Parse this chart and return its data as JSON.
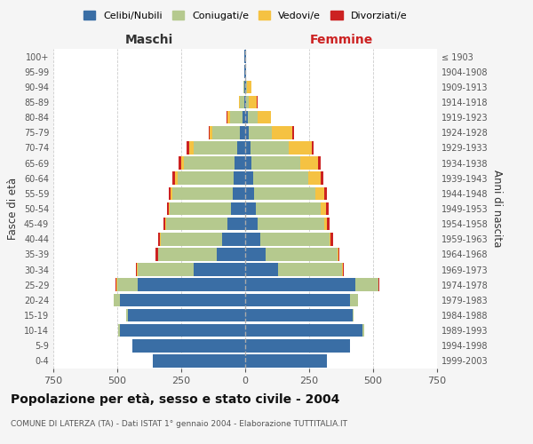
{
  "age_groups": [
    "0-4",
    "5-9",
    "10-14",
    "15-19",
    "20-24",
    "25-29",
    "30-34",
    "35-39",
    "40-44",
    "45-49",
    "50-54",
    "55-59",
    "60-64",
    "65-69",
    "70-74",
    "75-79",
    "80-84",
    "85-89",
    "90-94",
    "95-99",
    "100+"
  ],
  "birth_years": [
    "1999-2003",
    "1994-1998",
    "1989-1993",
    "1984-1988",
    "1979-1983",
    "1974-1978",
    "1969-1973",
    "1964-1968",
    "1959-1963",
    "1954-1958",
    "1949-1953",
    "1944-1948",
    "1939-1943",
    "1934-1938",
    "1929-1933",
    "1924-1928",
    "1919-1923",
    "1914-1918",
    "1909-1913",
    "1904-1908",
    "≤ 1903"
  ],
  "male": {
    "celibi": [
      360,
      440,
      490,
      460,
      490,
      420,
      200,
      110,
      90,
      70,
      55,
      50,
      45,
      40,
      30,
      20,
      10,
      5,
      3,
      2,
      2
    ],
    "coniugati": [
      0,
      0,
      5,
      5,
      25,
      80,
      220,
      230,
      240,
      240,
      240,
      235,
      220,
      200,
      170,
      110,
      50,
      15,
      5,
      0,
      0
    ],
    "vedovi": [
      0,
      0,
      0,
      0,
      0,
      2,
      2,
      2,
      2,
      2,
      3,
      5,
      8,
      10,
      20,
      10,
      10,
      5,
      0,
      0,
      0
    ],
    "divorziati": [
      0,
      0,
      0,
      0,
      0,
      5,
      5,
      8,
      8,
      8,
      8,
      10,
      12,
      10,
      8,
      2,
      2,
      0,
      0,
      0,
      0
    ]
  },
  "female": {
    "nubili": [
      320,
      410,
      460,
      420,
      410,
      430,
      130,
      80,
      60,
      50,
      40,
      35,
      30,
      25,
      20,
      15,
      10,
      5,
      3,
      2,
      2
    ],
    "coniugate": [
      0,
      0,
      5,
      5,
      30,
      90,
      250,
      280,
      270,
      260,
      255,
      240,
      215,
      190,
      150,
      90,
      40,
      10,
      5,
      0,
      0
    ],
    "vedove": [
      0,
      0,
      0,
      0,
      0,
      2,
      3,
      3,
      5,
      10,
      20,
      35,
      50,
      70,
      90,
      80,
      50,
      30,
      15,
      2,
      0
    ],
    "divorziate": [
      0,
      0,
      0,
      0,
      0,
      2,
      3,
      5,
      8,
      10,
      10,
      10,
      10,
      10,
      8,
      5,
      2,
      2,
      0,
      0,
      0
    ]
  },
  "colors": {
    "celibi": "#3a6ea5",
    "coniugati": "#b5c98e",
    "vedovi": "#f5c242",
    "divorziati": "#cc2222"
  },
  "xlim": 750,
  "title": "Popolazione per età, sesso e stato civile - 2004",
  "subtitle": "COMUNE DI LATERZA (TA) - Dati ISTAT 1° gennaio 2004 - Elaborazione TUTTITALIA.IT",
  "ylabel_left": "Fasce di età",
  "ylabel_right": "Anni di nascita",
  "xlabel_left": "Maschi",
  "xlabel_right": "Femmine",
  "bg_color": "#f5f5f5",
  "plot_bg": "#ffffff",
  "grid_color": "#cccccc",
  "tick_color": "#555555",
  "bar_height": 0.85
}
